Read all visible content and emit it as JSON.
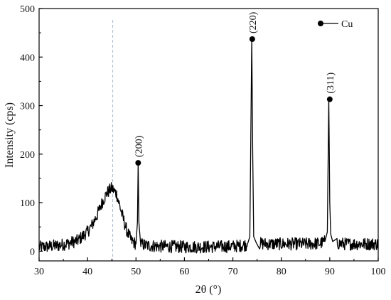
{
  "chart_data": {
    "type": "line",
    "xlabel": "2θ (°)",
    "ylabel": "Intensity (cps)",
    "xlim": [
      30,
      100
    ],
    "ylim": [
      -20,
      500
    ],
    "xticks": [
      30,
      40,
      50,
      60,
      70,
      80,
      90,
      100
    ],
    "yticks": [
      0,
      100,
      200,
      300,
      400,
      500
    ],
    "grid": false,
    "legend": {
      "position": "top-right",
      "entries": [
        {
          "label": "Cu",
          "marker": "filled-circle"
        }
      ]
    },
    "reference_line": {
      "x": 45.2,
      "style": "dashed",
      "color": "#a8b8cc"
    },
    "series": [
      {
        "line_color": "#000000",
        "x": [
          30,
          32,
          34,
          36,
          38,
          40,
          41,
          42,
          43,
          44,
          45,
          46,
          47,
          48,
          49,
          50,
          50.3,
          50.45,
          50.6,
          51,
          52,
          55,
          60,
          65,
          70,
          72,
          73,
          73.5,
          73.9,
          74.1,
          74.3,
          74.8,
          75.5,
          77,
          80,
          85,
          88,
          89,
          89.5,
          89.8,
          90,
          90.2,
          90.6,
          91.5,
          93,
          95,
          98,
          100
        ],
        "y": [
          8,
          10,
          12,
          16,
          22,
          40,
          55,
          75,
          100,
          120,
          130,
          118,
          80,
          45,
          22,
          15,
          60,
          182,
          60,
          15,
          12,
          10,
          9,
          9,
          10,
          12,
          14,
          30,
          437,
          200,
          30,
          18,
          16,
          15,
          15,
          15,
          16,
          20,
          40,
          313,
          100,
          35,
          20,
          16,
          15,
          15,
          15,
          15
        ]
      }
    ],
    "annotations": [
      {
        "x": 50.45,
        "y": 182,
        "text": "(200)"
      },
      {
        "x": 74.0,
        "y": 437,
        "text": "(220)"
      },
      {
        "x": 90.0,
        "y": 313,
        "text": "(311)"
      }
    ]
  }
}
